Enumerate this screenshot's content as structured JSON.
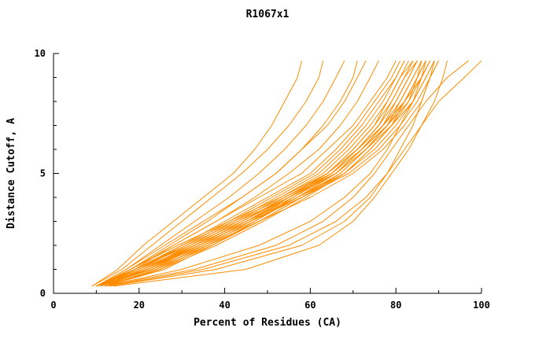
{
  "chart_data": {
    "type": "line",
    "title": "R1067x1",
    "xlabel": "Percent of Residues (CA)",
    "ylabel": "Distance Cutoff, A",
    "xlim": [
      0,
      100
    ],
    "ylim": [
      0,
      10
    ],
    "x_ticks": [
      0,
      20,
      40,
      60,
      80,
      100
    ],
    "y_ticks": [
      0,
      5,
      10
    ],
    "x_minor_step": 10,
    "y_minor_step": 1,
    "line_color": "#ff8c00",
    "axis_color": "#000000",
    "legend": "none",
    "grid": false,
    "y_levels": [
      0.3,
      1,
      2,
      3,
      4,
      5,
      6,
      7,
      8,
      9,
      9.7
    ],
    "series": [
      [
        10,
        18,
        28,
        38,
        48,
        58,
        64,
        70,
        74,
        78,
        80
      ],
      [
        10,
        19,
        30,
        40,
        50,
        60,
        66,
        71,
        75,
        79,
        81
      ],
      [
        10,
        20,
        31,
        41,
        51,
        61,
        67,
        72,
        76,
        80,
        82
      ],
      [
        11,
        21,
        32,
        42,
        52,
        62,
        68,
        73,
        77,
        80,
        82
      ],
      [
        11,
        22,
        33,
        43,
        53,
        63,
        69,
        74,
        78,
        81,
        83
      ],
      [
        11,
        23,
        34,
        44,
        54,
        64,
        70,
        75,
        78,
        81,
        84
      ],
      [
        12,
        24,
        35,
        45,
        55,
        64,
        70,
        75,
        79,
        82,
        84
      ],
      [
        12,
        25,
        36,
        46,
        55,
        65,
        71,
        76,
        79,
        82,
        85
      ],
      [
        12,
        26,
        37,
        47,
        56,
        65,
        71,
        76,
        80,
        83,
        85
      ],
      [
        10,
        20,
        33,
        45,
        56,
        66,
        72,
        77,
        80,
        83,
        85
      ],
      [
        10,
        21,
        34,
        46,
        57,
        66,
        72,
        77,
        81,
        84,
        86
      ],
      [
        11,
        22,
        35,
        47,
        57,
        67,
        73,
        78,
        81,
        84,
        86
      ],
      [
        11,
        23,
        36,
        48,
        58,
        67,
        73,
        78,
        82,
        85,
        86
      ],
      [
        12,
        24,
        37,
        48,
        58,
        68,
        74,
        79,
        82,
        85,
        87
      ],
      [
        12,
        25,
        38,
        49,
        59,
        68,
        74,
        79,
        83,
        85,
        87
      ],
      [
        10,
        19,
        32,
        44,
        55,
        66,
        72,
        78,
        82,
        86,
        88
      ],
      [
        10,
        20,
        30,
        42,
        54,
        65,
        72,
        78,
        83,
        86,
        88
      ],
      [
        11,
        18,
        29,
        41,
        53,
        64,
        71,
        77,
        82,
        86,
        88
      ],
      [
        11,
        19,
        31,
        43,
        55,
        66,
        73,
        79,
        84,
        87,
        89
      ],
      [
        12,
        21,
        33,
        45,
        57,
        68,
        75,
        80,
        84,
        87,
        89
      ],
      [
        12,
        22,
        34,
        46,
        58,
        69,
        76,
        81,
        85,
        88,
        90
      ],
      [
        10,
        23,
        36,
        48,
        60,
        70,
        77,
        82,
        86,
        88,
        90
      ],
      [
        9,
        15,
        21,
        28,
        35,
        42,
        47,
        51,
        54,
        57,
        58
      ],
      [
        9,
        16,
        23,
        30,
        37,
        44,
        50,
        55,
        59,
        62,
        63
      ],
      [
        10,
        17,
        25,
        33,
        41,
        48,
        54,
        59,
        63,
        66,
        68
      ],
      [
        10,
        18,
        27,
        36,
        44,
        52,
        58,
        63,
        67,
        70,
        71
      ],
      [
        12,
        30,
        48,
        60,
        68,
        74,
        78,
        81,
        84,
        86,
        87
      ],
      [
        13,
        35,
        55,
        66,
        73,
        78,
        81,
        84,
        86,
        88,
        89
      ],
      [
        14,
        45,
        62,
        70,
        75,
        79,
        83,
        86,
        89,
        91,
        92
      ],
      [
        13,
        38,
        58,
        68,
        74,
        78,
        82,
        86,
        90,
        96,
        100
      ],
      [
        12,
        33,
        52,
        63,
        70,
        75,
        79,
        83,
        87,
        92,
        97
      ],
      [
        10,
        17,
        26,
        35,
        44,
        52,
        58,
        64,
        68,
        71,
        73
      ],
      [
        11,
        19,
        28,
        38,
        47,
        55,
        62,
        67,
        71,
        74,
        76
      ]
    ]
  }
}
